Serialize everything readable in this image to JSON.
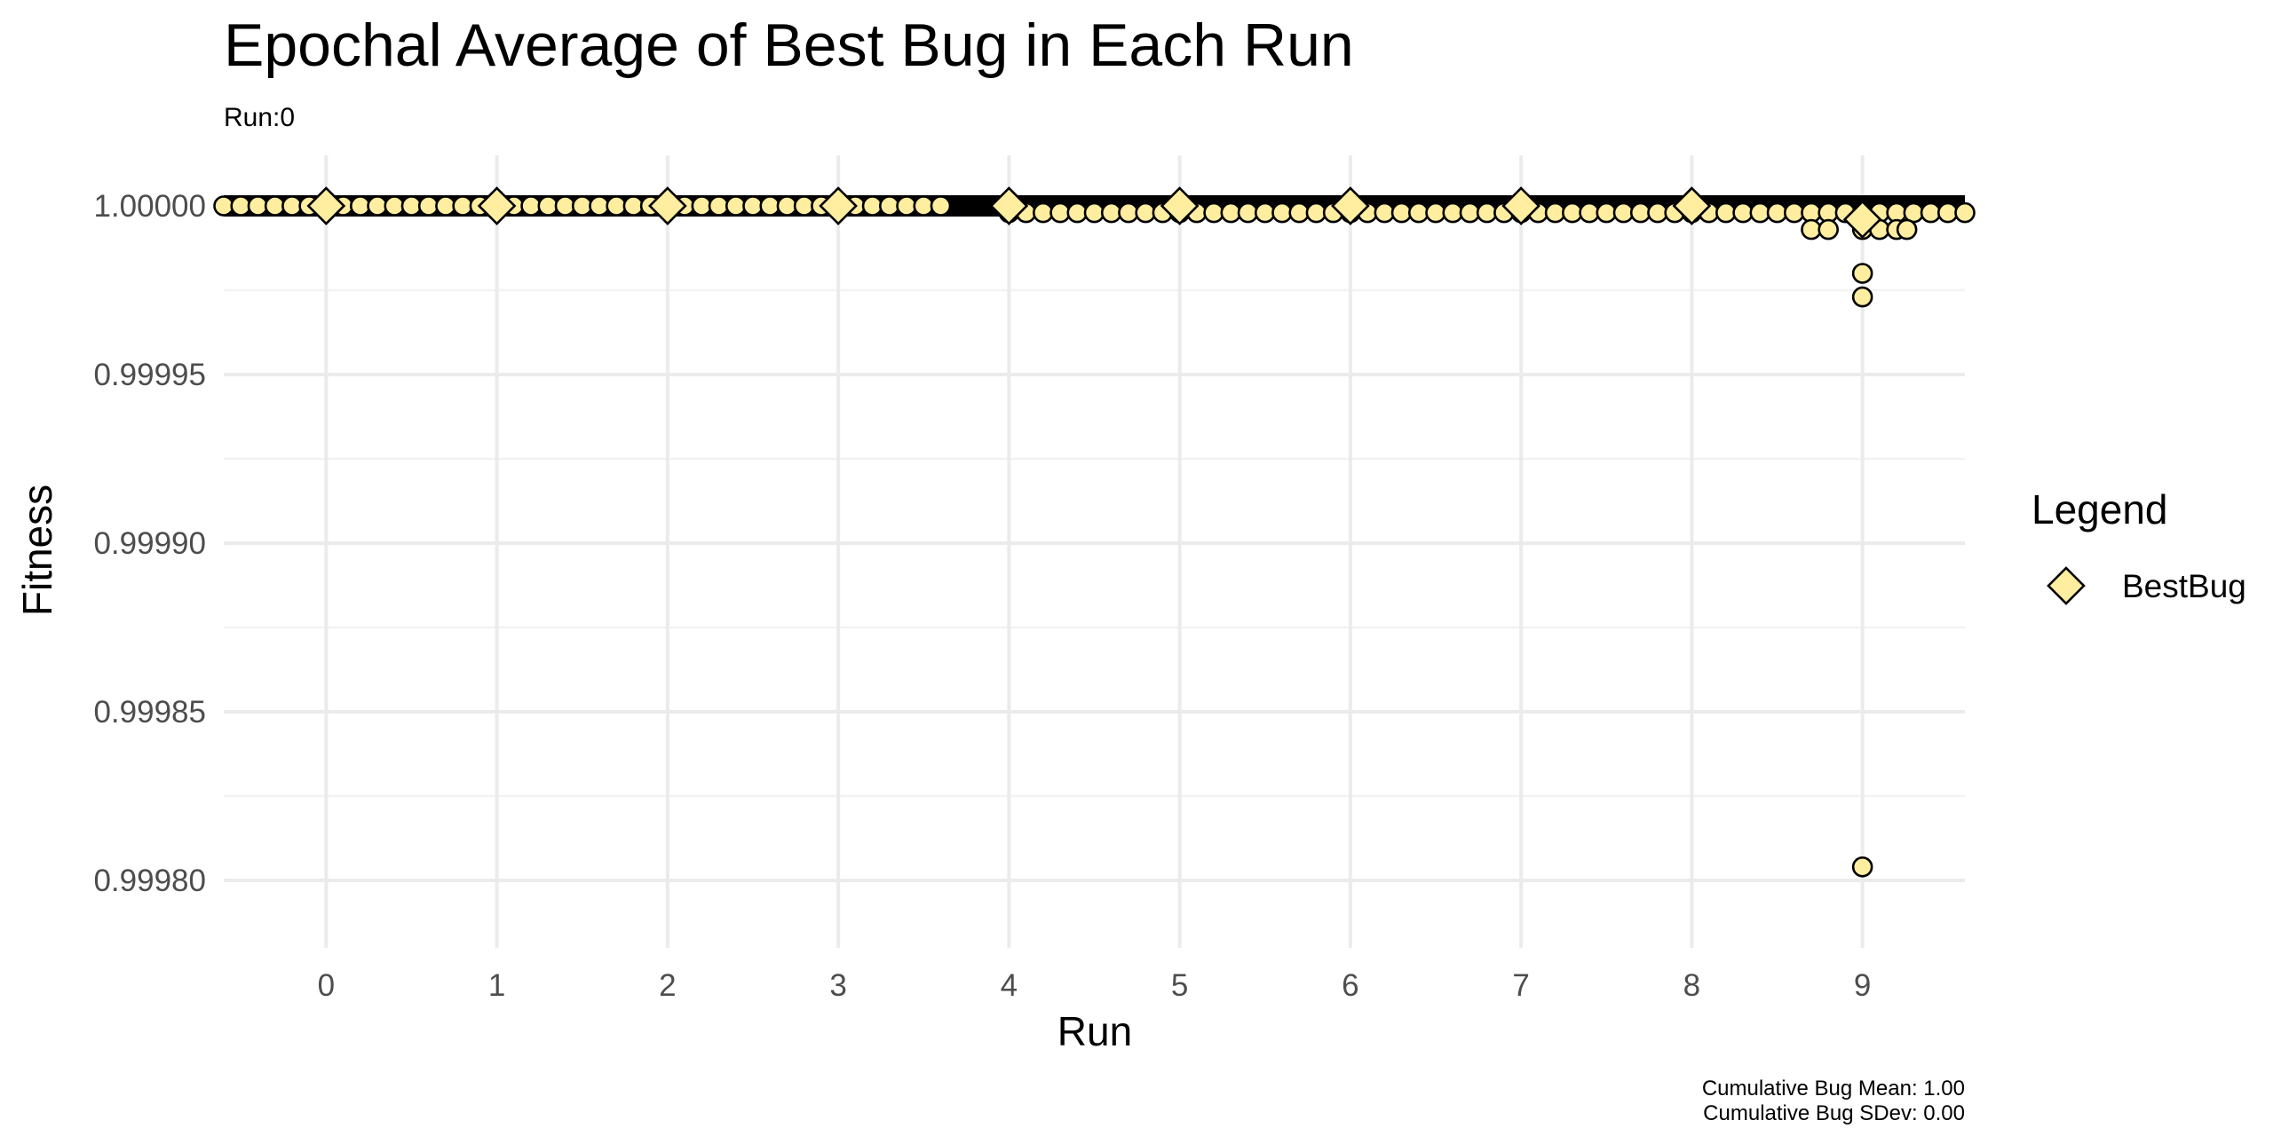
{
  "chart_data": {
    "type": "scatter",
    "title": "Epochal Average of Best Bug in Each Run",
    "subtitle": "Run:0",
    "xlabel": "Run",
    "ylabel": "Fitness",
    "xlim": [
      -0.6,
      9.6
    ],
    "ylim": [
      0.99978,
      1.000015
    ],
    "x_ticks": [
      "0",
      "1",
      "2",
      "3",
      "4",
      "5",
      "6",
      "7",
      "8",
      "9"
    ],
    "y_ticks": [
      "0.99980",
      "0.99985",
      "0.99990",
      "0.99995",
      "1.00000"
    ],
    "y_tick_values": [
      0.9998,
      0.99985,
      0.9999,
      0.99995,
      1.0
    ],
    "grid": true,
    "legend": {
      "title": "Legend",
      "position": "right",
      "entries": [
        "BestBug"
      ]
    },
    "point_fill": "#ffeda0",
    "point_stroke": "#000000",
    "best_bug": {
      "name": "BestBug",
      "x": [
        0,
        1,
        2,
        3,
        4,
        5,
        6,
        7,
        8,
        9
      ],
      "y": [
        1.0,
        1.0,
        1.0,
        1.0,
        1.0,
        1.0,
        1.0,
        1.0,
        1.0,
        0.999996
      ]
    },
    "epoch_points": [
      {
        "range": [
          -0.6,
          3.6
        ],
        "step": 0.1,
        "y": 1.0
      },
      {
        "range": [
          4.0,
          8.0
        ],
        "step": 0.1,
        "y": 0.999998
      },
      {
        "range": [
          8.1,
          9.6
        ],
        "step": 0.1,
        "y": 0.999998
      }
    ],
    "extra_points": [
      {
        "x": 8.7,
        "y": 0.999993
      },
      {
        "x": 8.8,
        "y": 0.999993
      },
      {
        "x": 9.0,
        "y": 0.999993
      },
      {
        "x": 9.1,
        "y": 0.999993
      },
      {
        "x": 9.2,
        "y": 0.999993
      },
      {
        "x": 9.26,
        "y": 0.999993
      },
      {
        "x": 9.0,
        "y": 0.99998
      },
      {
        "x": 9.0,
        "y": 0.999973
      },
      {
        "x": 9.0,
        "y": 0.999804
      }
    ],
    "caption": [
      "Cumulative Bug Mean: 1.00",
      "Cumulative Bug SDev: 0.00"
    ]
  }
}
